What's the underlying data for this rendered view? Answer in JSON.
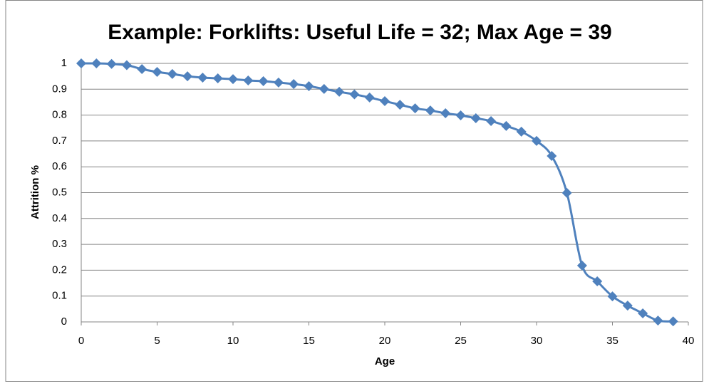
{
  "chart_data": {
    "type": "line",
    "title": "Example: Forklifts: Useful Life = 32; Max Age = 39",
    "x_label": "Age",
    "y_label": "Attrition %",
    "x": [
      0,
      1,
      2,
      3,
      4,
      5,
      6,
      7,
      8,
      9,
      10,
      11,
      12,
      13,
      14,
      15,
      16,
      17,
      18,
      19,
      20,
      21,
      22,
      23,
      24,
      25,
      26,
      27,
      28,
      29,
      30,
      31,
      32,
      33,
      34,
      35,
      36,
      37,
      38,
      39
    ],
    "series": [
      {
        "name": "Attrition %",
        "color": "#4f81bd",
        "values": [
          1.0,
          1.0,
          0.998,
          0.993,
          0.978,
          0.967,
          0.959,
          0.95,
          0.945,
          0.942,
          0.939,
          0.934,
          0.931,
          0.926,
          0.92,
          0.912,
          0.901,
          0.89,
          0.88,
          0.868,
          0.854,
          0.84,
          0.826,
          0.818,
          0.807,
          0.799,
          0.788,
          0.777,
          0.758,
          0.736,
          0.7,
          0.642,
          0.499,
          0.218,
          0.157,
          0.099,
          0.063,
          0.033,
          0.005,
          0.002
        ]
      }
    ],
    "xlim": [
      0,
      40
    ],
    "xticks": [
      0,
      5,
      10,
      15,
      20,
      25,
      30,
      35,
      40
    ],
    "ylim": [
      0,
      1
    ],
    "yticks": [
      0,
      0.1,
      0.2,
      0.3,
      0.4,
      0.5,
      0.6,
      0.7,
      0.8,
      0.9,
      1
    ],
    "grid": true,
    "smooth": true,
    "marker": "diamond"
  }
}
